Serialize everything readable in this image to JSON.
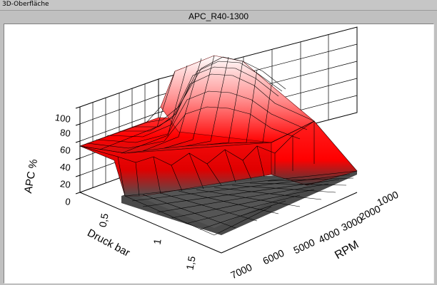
{
  "window": {
    "title": "3D-Oberfläche"
  },
  "chart_data": {
    "type": "surface3d",
    "title": "APC_R40-1300",
    "zlabel": "APC %",
    "xlabel": "Druck bar",
    "ylabel": "RPM",
    "z_ticks": [
      "0",
      "20",
      "40",
      "60",
      "80",
      "100"
    ],
    "x_ticks": [
      "0,5",
      "1",
      "1,5"
    ],
    "y_ticks": [
      "1000",
      "2000",
      "3000",
      "4000",
      "5000",
      "6000",
      "7000"
    ],
    "zlim": [
      0,
      100
    ],
    "colors": {
      "low": "#505050",
      "mid": "#ff0000",
      "high": "#ffffff"
    }
  }
}
